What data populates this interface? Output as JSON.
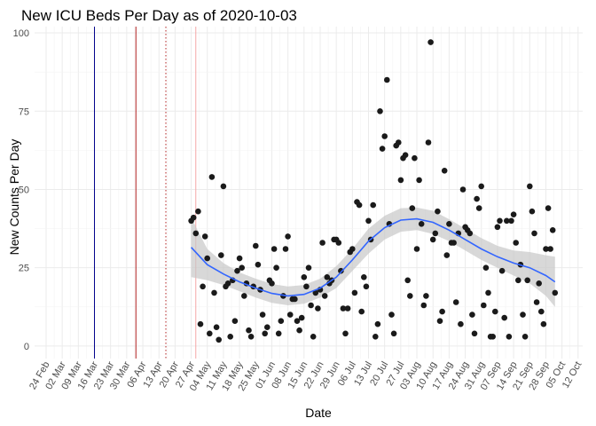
{
  "chart_data": {
    "type": "scatter",
    "title": "New ICU Beds Per Day as of 2020-10-03",
    "xlabel": "Date",
    "ylabel": "New Counts Per Day",
    "x_range": [
      "2020-02-19",
      "2020-10-14"
    ],
    "ylim": [
      -4,
      102
    ],
    "y_ticks": [
      0,
      25,
      50,
      75,
      100
    ],
    "x_ticks": [
      {
        "date": "2020-02-24",
        "label": "24 Feb"
      },
      {
        "date": "2020-03-02",
        "label": "02 Mar"
      },
      {
        "date": "2020-03-09",
        "label": "09 Mar"
      },
      {
        "date": "2020-03-16",
        "label": "16 Mar"
      },
      {
        "date": "2020-03-23",
        "label": "23 Mar"
      },
      {
        "date": "2020-03-30",
        "label": "30 Mar"
      },
      {
        "date": "2020-04-06",
        "label": "06 Apr"
      },
      {
        "date": "2020-04-13",
        "label": "13 Apr"
      },
      {
        "date": "2020-04-20",
        "label": "20 Apr"
      },
      {
        "date": "2020-04-27",
        "label": "27 Apr"
      },
      {
        "date": "2020-05-04",
        "label": "04 May"
      },
      {
        "date": "2020-05-11",
        "label": "11 May"
      },
      {
        "date": "2020-05-18",
        "label": "18 May"
      },
      {
        "date": "2020-05-25",
        "label": "25 May"
      },
      {
        "date": "2020-06-01",
        "label": "01 Jun"
      },
      {
        "date": "2020-06-08",
        "label": "08 Jun"
      },
      {
        "date": "2020-06-15",
        "label": "15 Jun"
      },
      {
        "date": "2020-06-22",
        "label": "22 Jun"
      },
      {
        "date": "2020-06-29",
        "label": "29 Jun"
      },
      {
        "date": "2020-07-06",
        "label": "06 Jul"
      },
      {
        "date": "2020-07-13",
        "label": "13 Jul"
      },
      {
        "date": "2020-07-20",
        "label": "20 Jul"
      },
      {
        "date": "2020-07-27",
        "label": "27 Jul"
      },
      {
        "date": "2020-08-03",
        "label": "03 Aug"
      },
      {
        "date": "2020-08-10",
        "label": "10 Aug"
      },
      {
        "date": "2020-08-17",
        "label": "17 Aug"
      },
      {
        "date": "2020-08-24",
        "label": "24 Aug"
      },
      {
        "date": "2020-08-31",
        "label": "31 Aug"
      },
      {
        "date": "2020-09-07",
        "label": "07 Sep"
      },
      {
        "date": "2020-09-14",
        "label": "14 Sep"
      },
      {
        "date": "2020-09-21",
        "label": "21 Sep"
      },
      {
        "date": "2020-09-28",
        "label": "28 Sep"
      },
      {
        "date": "2020-10-05",
        "label": "05 Oct"
      },
      {
        "date": "2020-10-12",
        "label": "12 Oct"
      }
    ],
    "grid": true,
    "vlines": [
      {
        "date": "2020-03-16",
        "color": "#00008b",
        "style": "solid"
      },
      {
        "date": "2020-04-03",
        "color": "#b22222",
        "style": "solid"
      },
      {
        "date": "2020-04-16",
        "color": "#b22222",
        "style": "dotted"
      },
      {
        "date": "2020-04-29",
        "color": "#f4a6a6",
        "style": "solid"
      }
    ],
    "point_color": "#1a1a1a",
    "smooth_color": "#3366ff",
    "band_color": "#c8c8c8",
    "points": [
      {
        "x": "2020-04-27",
        "y": 40
      },
      {
        "x": "2020-04-28",
        "y": 41
      },
      {
        "x": "2020-04-29",
        "y": 36
      },
      {
        "x": "2020-04-30",
        "y": 43
      },
      {
        "x": "2020-05-01",
        "y": 7
      },
      {
        "x": "2020-05-02",
        "y": 19
      },
      {
        "x": "2020-05-03",
        "y": 35
      },
      {
        "x": "2020-05-04",
        "y": 28
      },
      {
        "x": "2020-05-05",
        "y": 4
      },
      {
        "x": "2020-05-06",
        "y": 54
      },
      {
        "x": "2020-05-07",
        "y": 17
      },
      {
        "x": "2020-05-08",
        "y": 6
      },
      {
        "x": "2020-05-09",
        "y": 2
      },
      {
        "x": "2020-05-10",
        "y": 29
      },
      {
        "x": "2020-05-11",
        "y": 51
      },
      {
        "x": "2020-05-12",
        "y": 19
      },
      {
        "x": "2020-05-13",
        "y": 20
      },
      {
        "x": "2020-05-14",
        "y": 3
      },
      {
        "x": "2020-05-15",
        "y": 21
      },
      {
        "x": "2020-05-16",
        "y": 8
      },
      {
        "x": "2020-05-17",
        "y": 24
      },
      {
        "x": "2020-05-18",
        "y": 28
      },
      {
        "x": "2020-05-19",
        "y": 25
      },
      {
        "x": "2020-05-20",
        "y": 16
      },
      {
        "x": "2020-05-21",
        "y": 20
      },
      {
        "x": "2020-05-22",
        "y": 5
      },
      {
        "x": "2020-05-23",
        "y": 3
      },
      {
        "x": "2020-05-24",
        "y": 19
      },
      {
        "x": "2020-05-25",
        "y": 32
      },
      {
        "x": "2020-05-26",
        "y": 26
      },
      {
        "x": "2020-05-27",
        "y": 18
      },
      {
        "x": "2020-05-28",
        "y": 10
      },
      {
        "x": "2020-05-29",
        "y": 4
      },
      {
        "x": "2020-05-30",
        "y": 6
      },
      {
        "x": "2020-05-31",
        "y": 21
      },
      {
        "x": "2020-06-01",
        "y": 20
      },
      {
        "x": "2020-06-02",
        "y": 31
      },
      {
        "x": "2020-06-03",
        "y": 25
      },
      {
        "x": "2020-06-04",
        "y": 4
      },
      {
        "x": "2020-06-05",
        "y": 8
      },
      {
        "x": "2020-06-06",
        "y": 16
      },
      {
        "x": "2020-06-07",
        "y": 31
      },
      {
        "x": "2020-06-08",
        "y": 35
      },
      {
        "x": "2020-06-09",
        "y": 10
      },
      {
        "x": "2020-06-10",
        "y": 15
      },
      {
        "x": "2020-06-11",
        "y": 15
      },
      {
        "x": "2020-06-12",
        "y": 8
      },
      {
        "x": "2020-06-13",
        "y": 5
      },
      {
        "x": "2020-06-14",
        "y": 9
      },
      {
        "x": "2020-06-15",
        "y": 22
      },
      {
        "x": "2020-06-16",
        "y": 19
      },
      {
        "x": "2020-06-17",
        "y": 25
      },
      {
        "x": "2020-06-18",
        "y": 13
      },
      {
        "x": "2020-06-19",
        "y": 3
      },
      {
        "x": "2020-06-20",
        "y": 17
      },
      {
        "x": "2020-06-21",
        "y": 12
      },
      {
        "x": "2020-06-22",
        "y": 18
      },
      {
        "x": "2020-06-23",
        "y": 33
      },
      {
        "x": "2020-06-24",
        "y": 16
      },
      {
        "x": "2020-06-25",
        "y": 22
      },
      {
        "x": "2020-06-26",
        "y": 20
      },
      {
        "x": "2020-06-27",
        "y": 21
      },
      {
        "x": "2020-06-28",
        "y": 34
      },
      {
        "x": "2020-06-29",
        "y": 34
      },
      {
        "x": "2020-06-30",
        "y": 33
      },
      {
        "x": "2020-07-01",
        "y": 24
      },
      {
        "x": "2020-07-02",
        "y": 12
      },
      {
        "x": "2020-07-03",
        "y": 4
      },
      {
        "x": "2020-07-04",
        "y": 12
      },
      {
        "x": "2020-07-05",
        "y": 30
      },
      {
        "x": "2020-07-06",
        "y": 31
      },
      {
        "x": "2020-07-07",
        "y": 17
      },
      {
        "x": "2020-07-08",
        "y": 46
      },
      {
        "x": "2020-07-09",
        "y": 45
      },
      {
        "x": "2020-07-10",
        "y": 11
      },
      {
        "x": "2020-07-11",
        "y": 22
      },
      {
        "x": "2020-07-12",
        "y": 19
      },
      {
        "x": "2020-07-13",
        "y": 40
      },
      {
        "x": "2020-07-14",
        "y": 34
      },
      {
        "x": "2020-07-15",
        "y": 45
      },
      {
        "x": "2020-07-16",
        "y": 3
      },
      {
        "x": "2020-07-17",
        "y": 7
      },
      {
        "x": "2020-07-18",
        "y": 75
      },
      {
        "x": "2020-07-19",
        "y": 63
      },
      {
        "x": "2020-07-20",
        "y": 67
      },
      {
        "x": "2020-07-21",
        "y": 85
      },
      {
        "x": "2020-07-22",
        "y": 39
      },
      {
        "x": "2020-07-23",
        "y": 10
      },
      {
        "x": "2020-07-24",
        "y": 4
      },
      {
        "x": "2020-07-25",
        "y": 64
      },
      {
        "x": "2020-07-26",
        "y": 65
      },
      {
        "x": "2020-07-27",
        "y": 53
      },
      {
        "x": "2020-07-28",
        "y": 60
      },
      {
        "x": "2020-07-29",
        "y": 61
      },
      {
        "x": "2020-07-30",
        "y": 21
      },
      {
        "x": "2020-07-31",
        "y": 16
      },
      {
        "x": "2020-08-01",
        "y": 44
      },
      {
        "x": "2020-08-02",
        "y": 60
      },
      {
        "x": "2020-08-03",
        "y": 31
      },
      {
        "x": "2020-08-04",
        "y": 53
      },
      {
        "x": "2020-08-05",
        "y": 39
      },
      {
        "x": "2020-08-06",
        "y": 13
      },
      {
        "x": "2020-08-07",
        "y": 16
      },
      {
        "x": "2020-08-08",
        "y": 65
      },
      {
        "x": "2020-08-09",
        "y": 97
      },
      {
        "x": "2020-08-10",
        "y": 34
      },
      {
        "x": "2020-08-11",
        "y": 36
      },
      {
        "x": "2020-08-12",
        "y": 43
      },
      {
        "x": "2020-08-13",
        "y": 8
      },
      {
        "x": "2020-08-14",
        "y": 11
      },
      {
        "x": "2020-08-15",
        "y": 56
      },
      {
        "x": "2020-08-16",
        "y": 29
      },
      {
        "x": "2020-08-17",
        "y": 39
      },
      {
        "x": "2020-08-18",
        "y": 33
      },
      {
        "x": "2020-08-19",
        "y": 33
      },
      {
        "x": "2020-08-20",
        "y": 14
      },
      {
        "x": "2020-08-21",
        "y": 36
      },
      {
        "x": "2020-08-22",
        "y": 7
      },
      {
        "x": "2020-08-23",
        "y": 50
      },
      {
        "x": "2020-08-24",
        "y": 38
      },
      {
        "x": "2020-08-25",
        "y": 37
      },
      {
        "x": "2020-08-26",
        "y": 36
      },
      {
        "x": "2020-08-27",
        "y": 10
      },
      {
        "x": "2020-08-28",
        "y": 4
      },
      {
        "x": "2020-08-29",
        "y": 47
      },
      {
        "x": "2020-08-30",
        "y": 44
      },
      {
        "x": "2020-08-31",
        "y": 51
      },
      {
        "x": "2020-09-01",
        "y": 13
      },
      {
        "x": "2020-09-02",
        "y": 25
      },
      {
        "x": "2020-09-03",
        "y": 17
      },
      {
        "x": "2020-09-04",
        "y": 3
      },
      {
        "x": "2020-09-05",
        "y": 3
      },
      {
        "x": "2020-09-06",
        "y": 11
      },
      {
        "x": "2020-09-07",
        "y": 38
      },
      {
        "x": "2020-09-08",
        "y": 40
      },
      {
        "x": "2020-09-09",
        "y": 24
      },
      {
        "x": "2020-09-10",
        "y": 9
      },
      {
        "x": "2020-09-11",
        "y": 40
      },
      {
        "x": "2020-09-12",
        "y": 3
      },
      {
        "x": "2020-09-13",
        "y": 40
      },
      {
        "x": "2020-09-14",
        "y": 42
      },
      {
        "x": "2020-09-15",
        "y": 33
      },
      {
        "x": "2020-09-16",
        "y": 21
      },
      {
        "x": "2020-09-17",
        "y": 26
      },
      {
        "x": "2020-09-18",
        "y": 10
      },
      {
        "x": "2020-09-19",
        "y": 3
      },
      {
        "x": "2020-09-20",
        "y": 21
      },
      {
        "x": "2020-09-21",
        "y": 51
      },
      {
        "x": "2020-09-22",
        "y": 43
      },
      {
        "x": "2020-09-23",
        "y": 36
      },
      {
        "x": "2020-09-24",
        "y": 14
      },
      {
        "x": "2020-09-25",
        "y": 20
      },
      {
        "x": "2020-09-26",
        "y": 11
      },
      {
        "x": "2020-09-27",
        "y": 7
      },
      {
        "x": "2020-09-28",
        "y": 31
      },
      {
        "x": "2020-09-29",
        "y": 44
      },
      {
        "x": "2020-09-30",
        "y": 31
      },
      {
        "x": "2020-10-01",
        "y": 37
      },
      {
        "x": "2020-10-02",
        "y": 17
      }
    ],
    "smooth": [
      {
        "x": "2020-04-27",
        "y": 31.5,
        "lo": 22,
        "hi": 41
      },
      {
        "x": "2020-05-04",
        "y": 26,
        "lo": 21,
        "hi": 31
      },
      {
        "x": "2020-05-11",
        "y": 23,
        "lo": 19.5,
        "hi": 26.5
      },
      {
        "x": "2020-05-18",
        "y": 20.5,
        "lo": 17.5,
        "hi": 23.5
      },
      {
        "x": "2020-05-25",
        "y": 18.5,
        "lo": 15.5,
        "hi": 21.5
      },
      {
        "x": "2020-06-01",
        "y": 16.8,
        "lo": 13.8,
        "hi": 19.8
      },
      {
        "x": "2020-06-08",
        "y": 16,
        "lo": 13,
        "hi": 19
      },
      {
        "x": "2020-06-15",
        "y": 16.5,
        "lo": 13.5,
        "hi": 19.5
      },
      {
        "x": "2020-06-22",
        "y": 18.5,
        "lo": 15.5,
        "hi": 21.5
      },
      {
        "x": "2020-06-29",
        "y": 22,
        "lo": 18.5,
        "hi": 25.5
      },
      {
        "x": "2020-07-06",
        "y": 27.5,
        "lo": 24,
        "hi": 31
      },
      {
        "x": "2020-07-13",
        "y": 33.5,
        "lo": 29.5,
        "hi": 37.5
      },
      {
        "x": "2020-07-20",
        "y": 37.8,
        "lo": 34,
        "hi": 41.6
      },
      {
        "x": "2020-07-27",
        "y": 40.2,
        "lo": 36.5,
        "hi": 44
      },
      {
        "x": "2020-08-03",
        "y": 40.6,
        "lo": 37,
        "hi": 44.2
      },
      {
        "x": "2020-08-10",
        "y": 39.5,
        "lo": 35.8,
        "hi": 43.2
      },
      {
        "x": "2020-08-17",
        "y": 37,
        "lo": 33.5,
        "hi": 40.5
      },
      {
        "x": "2020-08-24",
        "y": 34,
        "lo": 30.5,
        "hi": 37.5
      },
      {
        "x": "2020-08-31",
        "y": 31,
        "lo": 27.5,
        "hi": 34.5
      },
      {
        "x": "2020-09-07",
        "y": 28.5,
        "lo": 25,
        "hi": 32
      },
      {
        "x": "2020-09-14",
        "y": 26.5,
        "lo": 22.5,
        "hi": 30.5
      },
      {
        "x": "2020-09-21",
        "y": 25,
        "lo": 20,
        "hi": 30
      },
      {
        "x": "2020-09-28",
        "y": 22.5,
        "lo": 16,
        "hi": 29
      },
      {
        "x": "2020-10-02",
        "y": 20.5,
        "lo": 12.5,
        "hi": 28.5
      }
    ]
  }
}
